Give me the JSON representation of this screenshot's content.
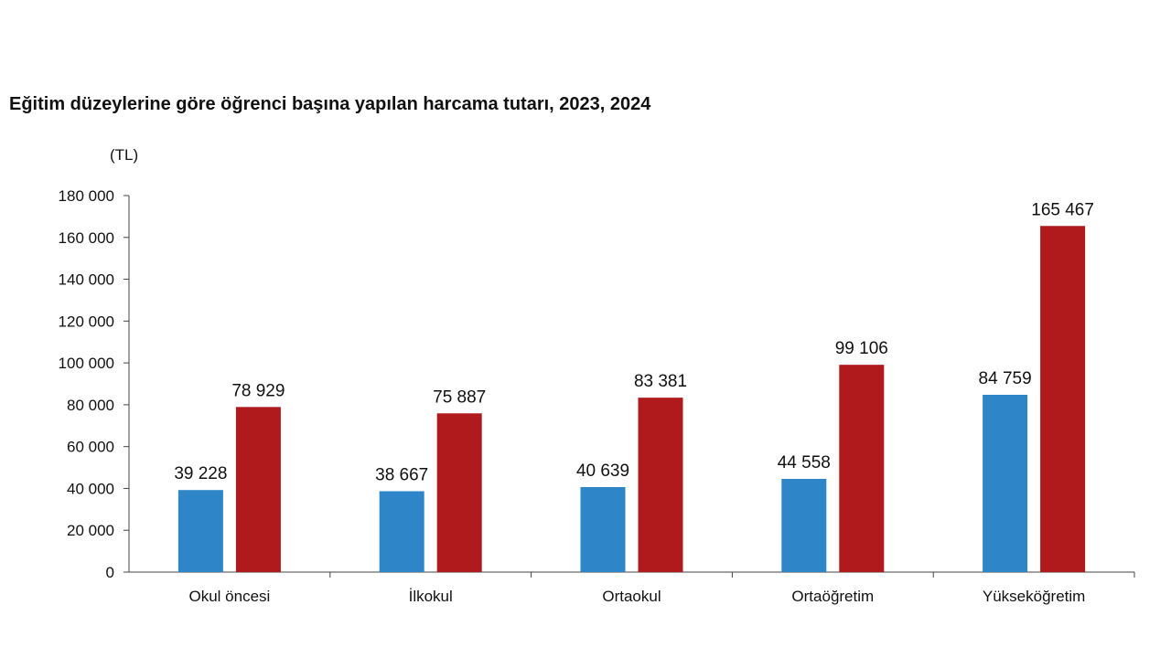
{
  "chart_data": {
    "type": "bar",
    "title": "Eğitim düzeylerine göre öğrenci başına yapılan harcama tutarı, 2023, 2024",
    "unit_label": "(TL)",
    "categories": [
      "Okul öncesi",
      "İlkokul",
      "Ortaokul",
      "Ortaöğretim",
      "Yükseköğretim"
    ],
    "series": [
      {
        "values": [
          39228,
          38667,
          40639,
          44558,
          84759
        ],
        "labels": [
          "39 228",
          "38 667",
          "40 639",
          "44 558",
          "84 759"
        ],
        "color": "#2e86c8"
      },
      {
        "values": [
          78929,
          75887,
          83381,
          99106,
          165467
        ],
        "labels": [
          "78 929",
          "75 887",
          "83 381",
          "99 106",
          "165 467"
        ],
        "color": "#b01a1d"
      }
    ],
    "ylim": [
      0,
      180000
    ],
    "yticks": [
      0,
      20000,
      40000,
      60000,
      80000,
      100000,
      120000,
      140000,
      160000,
      180000
    ],
    "ytick_labels": [
      "0",
      "20 000",
      "40 000",
      "60 000",
      "80 000",
      "100 000",
      "120 000",
      "140 000",
      "160 000",
      "180 000"
    ],
    "legend": "none",
    "grid": false
  }
}
